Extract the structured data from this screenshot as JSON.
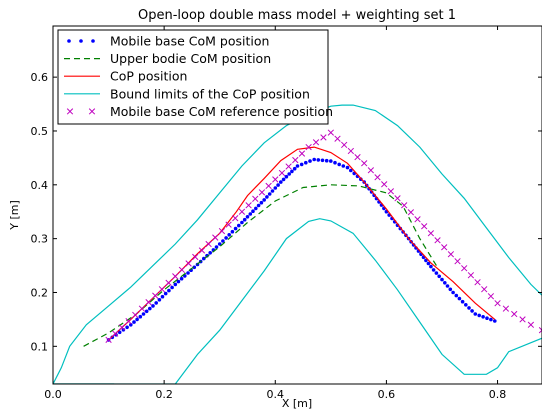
{
  "chart_data": {
    "type": "line",
    "title": "Open-loop double mass model + weighting set 1",
    "xlabel": "X [m]",
    "ylabel": "Y [m]",
    "xlim": [
      0.0,
      0.88
    ],
    "ylim": [
      0.03,
      0.695
    ],
    "xticks": [
      0.0,
      0.2,
      0.4,
      0.6,
      0.8
    ],
    "yticks": [
      0.1,
      0.2,
      0.3,
      0.4,
      0.5,
      0.6
    ],
    "xtick_labels": [
      "0.0",
      "0.2",
      "0.4",
      "0.6",
      "0.8"
    ],
    "ytick_labels": [
      "0.1",
      "0.2",
      "0.3",
      "0.4",
      "0.5",
      "0.6"
    ],
    "grid": false,
    "legend_placement": "top-left",
    "series": [
      {
        "name": "Mobile base CoM position",
        "style": "dotted",
        "color": "#0000ff",
        "x": [
          0.1,
          0.14,
          0.18,
          0.22,
          0.26,
          0.3,
          0.34,
          0.38,
          0.41,
          0.44,
          0.47,
          0.5,
          0.53,
          0.56,
          0.6,
          0.64,
          0.68,
          0.72,
          0.76,
          0.795
        ],
        "y": [
          0.112,
          0.14,
          0.175,
          0.215,
          0.252,
          0.29,
          0.33,
          0.372,
          0.405,
          0.435,
          0.447,
          0.444,
          0.432,
          0.405,
          0.35,
          0.3,
          0.248,
          0.2,
          0.16,
          0.147
        ]
      },
      {
        "name": "Upper bodie CoM position",
        "style": "dashed",
        "color": "#008000",
        "x": [
          0.055,
          0.1,
          0.15,
          0.2,
          0.25,
          0.3,
          0.35,
          0.4,
          0.45,
          0.5,
          0.55,
          0.6,
          0.63,
          0.66,
          0.69
        ],
        "y": [
          0.1,
          0.125,
          0.16,
          0.205,
          0.245,
          0.285,
          0.33,
          0.37,
          0.395,
          0.4,
          0.398,
          0.385,
          0.36,
          0.3,
          0.25
        ]
      },
      {
        "name": "CoP position",
        "style": "solid",
        "color": "#ff0000",
        "x": [
          0.1,
          0.14,
          0.18,
          0.22,
          0.26,
          0.3,
          0.33,
          0.35,
          0.38,
          0.41,
          0.44,
          0.47,
          0.5,
          0.53,
          0.56,
          0.6,
          0.64,
          0.68,
          0.72,
          0.76,
          0.795
        ],
        "y": [
          0.112,
          0.15,
          0.19,
          0.23,
          0.272,
          0.31,
          0.35,
          0.38,
          0.412,
          0.445,
          0.466,
          0.47,
          0.46,
          0.44,
          0.405,
          0.355,
          0.3,
          0.255,
          0.22,
          0.18,
          0.15
        ]
      },
      {
        "name": "Bound limits of the CoP position",
        "style": "solid",
        "color": "#00bfbf",
        "segments": [
          {
            "x": [
              0.88,
              0.82,
              0.8,
              0.78,
              0.74,
              0.7,
              0.66,
              0.62,
              0.58,
              0.54,
              0.5,
              0.48,
              0.46,
              0.42,
              0.38,
              0.34,
              0.3,
              0.26,
              0.22,
              0.18,
              0.14,
              0.1,
              0.06,
              0.03,
              0.01,
              0.0
            ],
            "y": [
              0.115,
              0.09,
              0.06,
              0.048,
              0.048,
              0.085,
              0.145,
              0.205,
              0.26,
              0.31,
              0.333,
              0.337,
              0.332,
              0.3,
              0.24,
              0.185,
              0.13,
              0.085,
              0.03,
              0.03,
              0.03,
              0.03,
              0.03,
              0.03,
              0.03,
              0.03
            ]
          },
          {
            "x": [
              0.88,
              0.86,
              0.82,
              0.78,
              0.74,
              0.7,
              0.66,
              0.62,
              0.58,
              0.54,
              0.52,
              0.5,
              0.46,
              0.42,
              0.38,
              0.34,
              0.3,
              0.26,
              0.22,
              0.18,
              0.14,
              0.1,
              0.06,
              0.03,
              0.015,
              0.0,
              0.01,
              0.04,
              0.08,
              0.11
            ],
            "y": [
              0.195,
              0.215,
              0.265,
              0.32,
              0.375,
              0.42,
              0.47,
              0.51,
              0.538,
              0.548,
              0.548,
              0.546,
              0.53,
              0.51,
              0.478,
              0.435,
              0.385,
              0.335,
              0.29,
              0.25,
              0.21,
              0.175,
              0.14,
              0.1,
              0.06,
              0.03,
              0.03,
              0.03,
              0.03,
              0.03
            ]
          }
        ]
      },
      {
        "name": "Mobile base CoM reference position",
        "style": "x-markers",
        "color": "#bf00bf",
        "x": [
          0.1,
          0.16,
          0.22,
          0.28,
          0.34,
          0.4,
          0.46,
          0.5,
          0.56,
          0.62,
          0.68,
          0.74,
          0.8,
          0.86,
          0.88
        ],
        "y": [
          0.112,
          0.17,
          0.23,
          0.29,
          0.35,
          0.41,
          0.47,
          0.497,
          0.44,
          0.375,
          0.31,
          0.245,
          0.18,
          0.14,
          0.13
        ]
      }
    ]
  }
}
